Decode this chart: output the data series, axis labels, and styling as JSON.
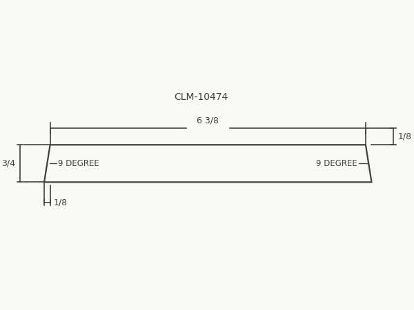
{
  "title": "CLM-10474",
  "title_fontsize": 10,
  "line_color": "#404040",
  "bg_color": "#f8f8f4",
  "part_lw": 1.6,
  "dim_lw": 1.2,
  "label_638": "6 3/8",
  "label_34": "3/4",
  "label_18_right": "1/8",
  "label_18_left": "1/8",
  "label_9deg_left": "9 DEGREE",
  "label_9deg_right": "9 DEGREE",
  "label_fontsize": 9.0,
  "fig_width": 6.0,
  "fig_height": 4.5,
  "dpi": 100
}
